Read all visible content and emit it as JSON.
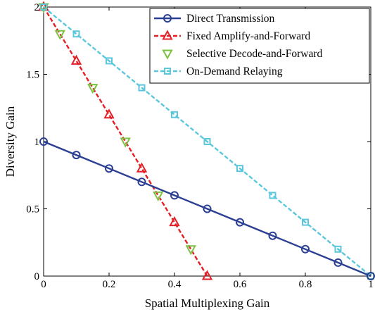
{
  "chart_data": {
    "type": "line",
    "title": "",
    "xlabel": "Spatial Multiplexing Gain",
    "ylabel": "Diversity Gain",
    "xlim": [
      0,
      1
    ],
    "ylim": [
      0,
      2
    ],
    "xticks": [
      0,
      0.2,
      0.4,
      0.6,
      0.8,
      1
    ],
    "yticks": [
      0,
      0.5,
      1,
      1.5,
      2
    ],
    "xtick_labels": [
      "0",
      "0.2",
      "0.4",
      "0.6",
      "0.8",
      "1"
    ],
    "ytick_labels": [
      "0",
      "0.5",
      "1",
      "1.5",
      "2"
    ],
    "grid": false,
    "legend_position": "top-right",
    "series": [
      {
        "name": "Direct Transmission",
        "color": "#2b3f93",
        "marker": "circle",
        "dashed": false,
        "x": [
          0,
          0.1,
          0.2,
          0.3,
          0.4,
          0.5,
          0.6,
          0.7,
          0.8,
          0.9,
          1.0
        ],
        "y": [
          1.0,
          0.9,
          0.8,
          0.7,
          0.6,
          0.5,
          0.4,
          0.3,
          0.2,
          0.1,
          0.0
        ]
      },
      {
        "name": "Fixed Amplify-and-Forward",
        "color": "#e41f26",
        "marker": "triangle-up",
        "dashed": true,
        "x": [
          0,
          0.1,
          0.2,
          0.3,
          0.4,
          0.5
        ],
        "y": [
          2.0,
          1.6,
          1.2,
          0.8,
          0.4,
          0.0
        ]
      },
      {
        "name": "Selective Decode-and-Forward",
        "color": "#7bc142",
        "marker": "triangle-down",
        "dashed": false,
        "x": [
          0,
          0.05,
          0.15,
          0.25,
          0.35,
          0.45
        ],
        "y": [
          2.0,
          1.8,
          1.4,
          1.0,
          0.6,
          0.2
        ]
      },
      {
        "name": "On-Demand Relaying",
        "color": "#5bc7dc",
        "marker": "square",
        "dashed": true,
        "x": [
          0,
          0.1,
          0.2,
          0.3,
          0.4,
          0.5,
          0.6,
          0.7,
          0.8,
          0.9,
          1.0
        ],
        "y": [
          2.0,
          1.8,
          1.6,
          1.4,
          1.2,
          1.0,
          0.8,
          0.6,
          0.4,
          0.2,
          0.0
        ]
      }
    ]
  }
}
